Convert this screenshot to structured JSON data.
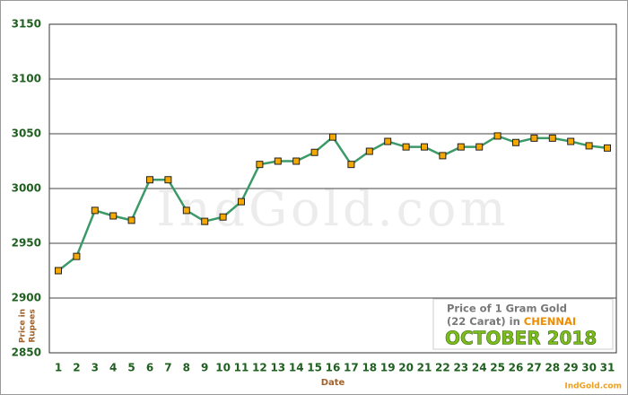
{
  "chart_data": {
    "type": "line",
    "categories": [
      1,
      2,
      3,
      4,
      5,
      6,
      7,
      8,
      9,
      10,
      11,
      12,
      13,
      14,
      15,
      16,
      17,
      18,
      19,
      20,
      21,
      22,
      23,
      24,
      25,
      26,
      27,
      28,
      29,
      30,
      31
    ],
    "values": [
      2925,
      2938,
      2980,
      2975,
      2971,
      3008,
      3008,
      2980,
      2970,
      2974,
      2988,
      3022,
      3025,
      3025,
      3033,
      3047,
      3022,
      3034,
      3043,
      3038,
      3038,
      3030,
      3038,
      3038,
      3048,
      3042,
      3046,
      3046,
      3043,
      3039,
      3037
    ],
    "color": "#3c9a68",
    "marker_color": "#f5a800",
    "ylim": [
      2850,
      3150
    ],
    "yticks": [
      2850,
      2900,
      2950,
      3000,
      3050,
      3100,
      3150
    ],
    "grid": true,
    "xlabel": "Date",
    "ylabel": [
      "Price in",
      "Rupees"
    ],
    "watermark": "IndGold.com",
    "legend_lines": [
      "Price of 1 Gram Gold",
      "(22 Carat) in"
    ],
    "city": "CHENNAI",
    "period": "OCTOBER 2018",
    "source": "IndGold.com"
  }
}
